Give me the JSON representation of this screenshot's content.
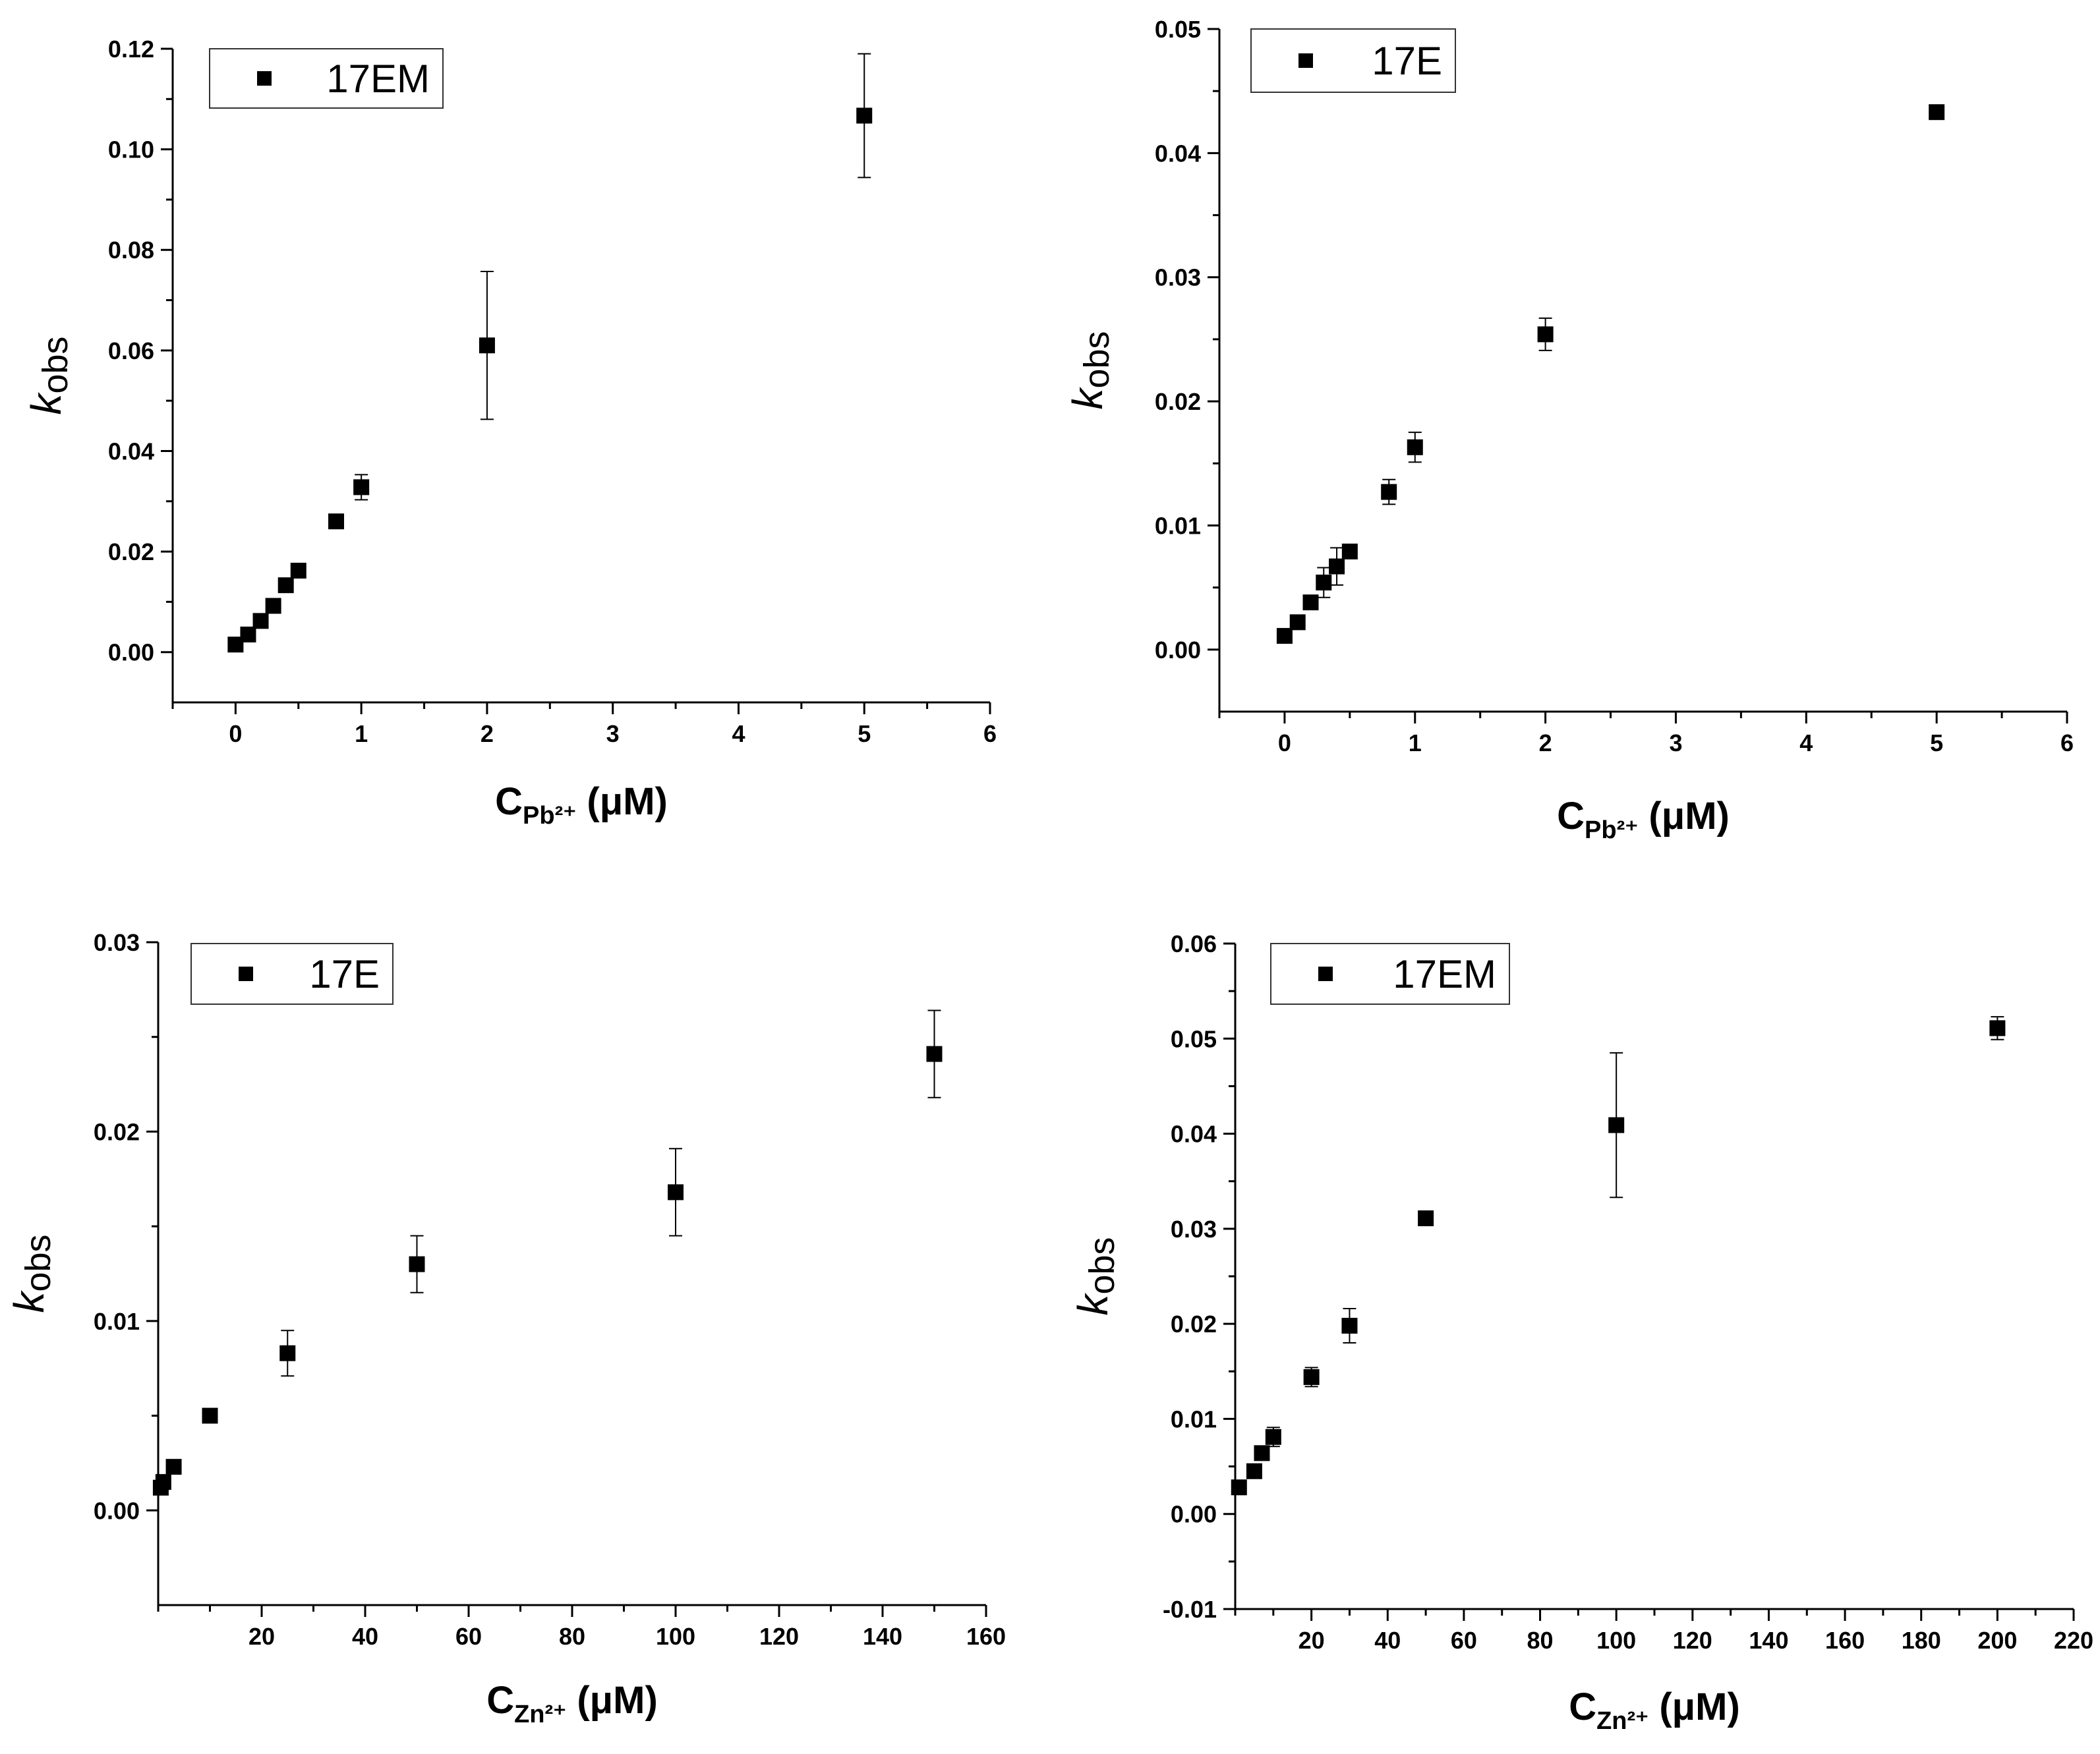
{
  "chart_data": [
    {
      "id": "top-left",
      "type": "scatter",
      "legend": "17EM",
      "legend_position": "top-left",
      "ylabel": {
        "main": "k",
        "sub": "obs"
      },
      "xlabel": {
        "main": "C",
        "sub": "Pb²⁺",
        "unit": "(μM)"
      },
      "xlim": [
        -0.5,
        6
      ],
      "ylim": [
        -0.01,
        0.12
      ],
      "x_ticks": [
        0,
        1,
        2,
        3,
        4,
        5,
        6
      ],
      "x_tick_labels": [
        "0",
        "1",
        "2",
        "3",
        "4",
        "5",
        "6"
      ],
      "y_ticks": [
        0,
        0.02,
        0.04,
        0.06,
        0.08,
        0.1,
        0.12
      ],
      "y_tick_labels": [
        "0.00",
        "0.02",
        "0.04",
        "0.06",
        "0.08",
        "0.10",
        "0.12"
      ],
      "points": [
        {
          "x": 0,
          "y": 0.0015,
          "err": 0
        },
        {
          "x": 0.1,
          "y": 0.0035,
          "err": 0
        },
        {
          "x": 0.2,
          "y": 0.0062,
          "err": 0
        },
        {
          "x": 0.3,
          "y": 0.0092,
          "err": 0
        },
        {
          "x": 0.4,
          "y": 0.0133,
          "err": 0
        },
        {
          "x": 0.5,
          "y": 0.0162,
          "err": 0
        },
        {
          "x": 0.8,
          "y": 0.026,
          "err": 0
        },
        {
          "x": 1,
          "y": 0.0328,
          "err": 0.0025
        },
        {
          "x": 2,
          "y": 0.061,
          "err": 0.0147
        },
        {
          "x": 5,
          "y": 0.1067,
          "err": 0.0123
        }
      ]
    },
    {
      "id": "top-right",
      "type": "scatter",
      "legend": "17E",
      "legend_position": "top-left",
      "ylabel": {
        "main": "k",
        "sub": "obs"
      },
      "xlabel": {
        "main": "C",
        "sub": "Pb²⁺",
        "unit": "(μM)"
      },
      "xlim": [
        -0.5,
        6
      ],
      "ylim": [
        -0.005,
        0.05
      ],
      "x_ticks": [
        0,
        1,
        2,
        3,
        4,
        5,
        6
      ],
      "x_tick_labels": [
        "0",
        "1",
        "2",
        "3",
        "4",
        "5",
        "6"
      ],
      "y_ticks": [
        0,
        0.01,
        0.02,
        0.03,
        0.04,
        0.05
      ],
      "y_tick_labels": [
        "0.00",
        "0.01",
        "0.02",
        "0.03",
        "0.04",
        "0.05"
      ],
      "points": [
        {
          "x": 0,
          "y": 0.0011,
          "err": 0
        },
        {
          "x": 0.1,
          "y": 0.0022,
          "err": 0
        },
        {
          "x": 0.2,
          "y": 0.0038,
          "err": 0
        },
        {
          "x": 0.3,
          "y": 0.0054,
          "err": 0.0012
        },
        {
          "x": 0.4,
          "y": 0.0067,
          "err": 0.0015
        },
        {
          "x": 0.5,
          "y": 0.0079,
          "err": 0
        },
        {
          "x": 0.8,
          "y": 0.0127,
          "err": 0.001
        },
        {
          "x": 1,
          "y": 0.0163,
          "err": 0.0012
        },
        {
          "x": 2,
          "y": 0.0254,
          "err": 0.0013
        },
        {
          "x": 5,
          "y": 0.0433,
          "err": 0
        }
      ]
    },
    {
      "id": "bottom-left",
      "type": "scatter",
      "legend": "17E",
      "legend_position": "top-left",
      "ylabel": {
        "main": "k",
        "sub": "obs"
      },
      "xlabel": {
        "main": "C",
        "sub": "Zn²⁺",
        "unit": "(μM)"
      },
      "xlim": [
        0,
        160
      ],
      "ylim": [
        -0.005,
        0.03
      ],
      "x_ticks": [
        20,
        40,
        60,
        80,
        100,
        120,
        140,
        160
      ],
      "x_tick_labels": [
        "20",
        "40",
        "60",
        "80",
        "100",
        "120",
        "140",
        "160"
      ],
      "y_ticks": [
        0,
        0.01,
        0.02,
        0.03
      ],
      "y_tick_labels": [
        "0.00",
        "0.01",
        "0.02",
        "0.03"
      ],
      "points": [
        {
          "x": 0.5,
          "y": 0.0012,
          "err": 0
        },
        {
          "x": 1,
          "y": 0.0015,
          "err": 0
        },
        {
          "x": 3,
          "y": 0.0023,
          "err": 0
        },
        {
          "x": 10,
          "y": 0.005,
          "err": 0
        },
        {
          "x": 25,
          "y": 0.0083,
          "err": 0.0012
        },
        {
          "x": 50,
          "y": 0.013,
          "err": 0.0015
        },
        {
          "x": 100,
          "y": 0.0168,
          "err": 0.0023
        },
        {
          "x": 150,
          "y": 0.0241,
          "err": 0.0023
        }
      ]
    },
    {
      "id": "bottom-right",
      "type": "scatter",
      "legend": "17EM",
      "legend_position": "top-left",
      "ylabel": {
        "main": "k",
        "sub": "obs"
      },
      "xlabel": {
        "main": "C",
        "sub": "Zn²⁺",
        "unit": "(μM)"
      },
      "xlim": [
        0,
        220
      ],
      "ylim": [
        -0.01,
        0.06
      ],
      "x_ticks": [
        20,
        40,
        60,
        80,
        100,
        120,
        140,
        160,
        180,
        200,
        220
      ],
      "x_tick_labels": [
        "20",
        "40",
        "60",
        "80",
        "100",
        "120",
        "140",
        "160",
        "180",
        "200",
        "220"
      ],
      "y_ticks": [
        -0.01,
        0,
        0.01,
        0.02,
        0.03,
        0.04,
        0.05,
        0.06
      ],
      "y_tick_labels": [
        "-0.01",
        "0.00",
        "0.01",
        "0.02",
        "0.03",
        "0.04",
        "0.05",
        "0.06"
      ],
      "points": [
        {
          "x": 1,
          "y": 0.0028,
          "err": 0
        },
        {
          "x": 5,
          "y": 0.0045,
          "err": 0
        },
        {
          "x": 7,
          "y": 0.0064,
          "err": 0
        },
        {
          "x": 10,
          "y": 0.0081,
          "err": 0.001
        },
        {
          "x": 20,
          "y": 0.0144,
          "err": 0.001
        },
        {
          "x": 30,
          "y": 0.0198,
          "err": 0.0018
        },
        {
          "x": 50,
          "y": 0.0311,
          "err": 0
        },
        {
          "x": 100,
          "y": 0.0409,
          "err": 0.0076
        },
        {
          "x": 200,
          "y": 0.0511,
          "err": 0.0012
        }
      ]
    }
  ]
}
